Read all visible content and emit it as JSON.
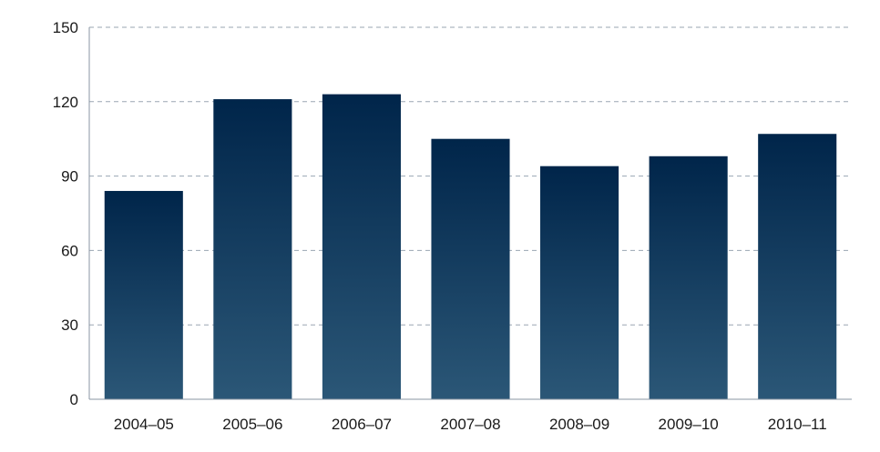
{
  "chart_data": {
    "type": "bar",
    "title": "",
    "xlabel": "",
    "ylabel": "",
    "categories": [
      "2004–05",
      "2005–06",
      "2006–07",
      "2007–08",
      "2008–09",
      "2009–10",
      "2010–11"
    ],
    "values": [
      84,
      121,
      123,
      105,
      94,
      98,
      107
    ],
    "ylim": [
      0,
      150
    ],
    "yticks": [
      0,
      30,
      60,
      90,
      120,
      150
    ],
    "ytick_labels": [
      "0",
      "30",
      "60",
      "90",
      "120",
      "150"
    ],
    "grid": true,
    "legend": "none",
    "colors": {
      "bar_top": "#00254a",
      "bar_bottom": "#2b5777",
      "grid": "#9aa6b2",
      "axis": "#8a96a3",
      "text": "#1a1a1a"
    }
  }
}
